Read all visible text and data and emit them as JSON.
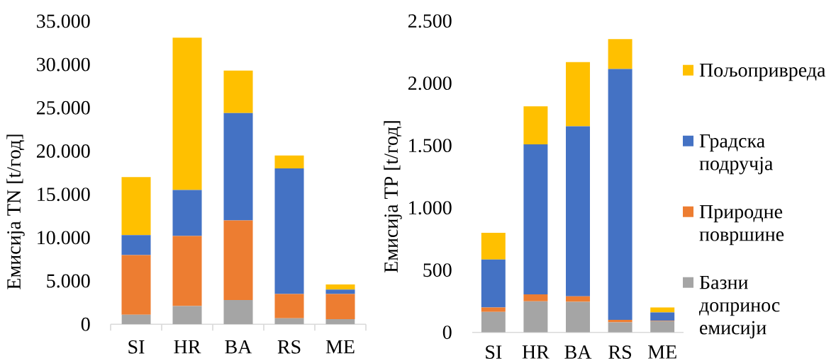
{
  "chart_data": [
    {
      "type": "bar",
      "stacked": true,
      "ylabel": "Емисија TN [t/год]",
      "categories": [
        "SI",
        "HR",
        "BA",
        "RS",
        "ME"
      ],
      "series": [
        {
          "color": "#a5a5a5",
          "values": [
            1100,
            2100,
            2800,
            700,
            600
          ]
        },
        {
          "color": "#ed7d31",
          "values": [
            6900,
            8100,
            9200,
            2800,
            2900
          ]
        },
        {
          "color": "#4472c4",
          "values": [
            2300,
            5300,
            12400,
            14500,
            500
          ]
        },
        {
          "color": "#ffc000",
          "values": [
            6700,
            17600,
            4900,
            1500,
            600
          ]
        }
      ],
      "ylim": [
        0,
        35000
      ],
      "yticks": [
        0,
        {
          "value": 5000,
          "label": "5.000"
        },
        {
          "value": 10000,
          "label": "10.000"
        },
        {
          "value": 15000,
          "label": "15.000"
        },
        {
          "value": 20000,
          "label": "20.000"
        },
        {
          "value": 25000,
          "label": "25.000"
        },
        {
          "value": 30000,
          "label": "30.000"
        },
        {
          "value": 35000,
          "label": "35.000"
        }
      ]
    },
    {
      "type": "bar",
      "stacked": true,
      "ylabel": "Емисија TP [t/год]",
      "categories": [
        "SI",
        "HR",
        "BA",
        "RS",
        "ME"
      ],
      "series": [
        {
          "name": "Базни допринос емисији",
          "color": "#a5a5a5",
          "values": [
            165,
            250,
            245,
            80,
            90
          ]
        },
        {
          "name": "Природне површине",
          "color": "#ed7d31",
          "values": [
            35,
            55,
            45,
            20,
            5
          ]
        },
        {
          "name": "Градска подручја",
          "color": "#4472c4",
          "values": [
            385,
            1205,
            1365,
            2015,
            65
          ]
        },
        {
          "name": "Пољопривреда",
          "color": "#ffc000",
          "values": [
            215,
            305,
            515,
            240,
            40
          ]
        }
      ],
      "ylim": [
        0,
        2500
      ],
      "yticks": [
        0,
        500,
        {
          "value": 1000,
          "label": "1.000"
        },
        {
          "value": 1500,
          "label": "1.500"
        },
        {
          "value": 2000,
          "label": "2.000"
        },
        {
          "value": 2500,
          "label": "2.500"
        }
      ],
      "legend": "right"
    }
  ]
}
